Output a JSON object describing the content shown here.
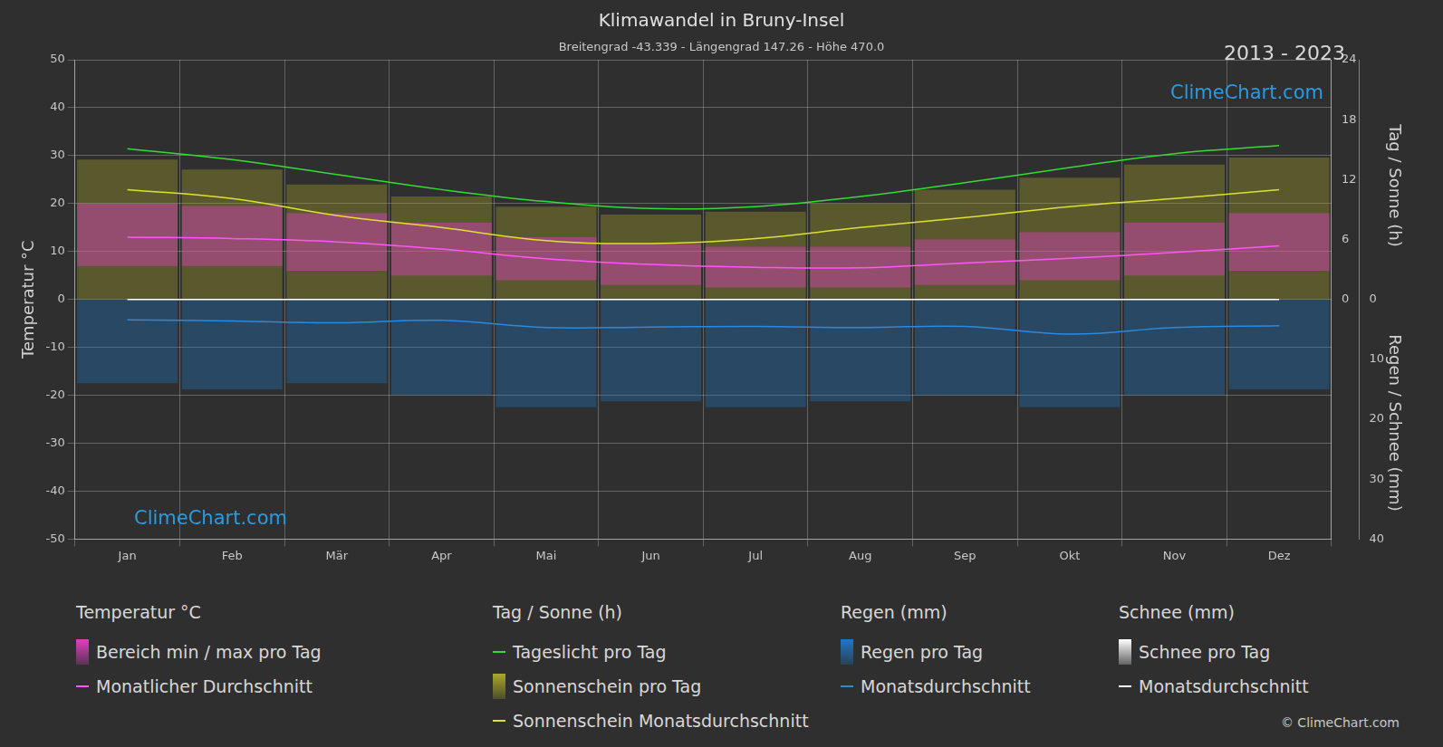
{
  "chart_data": {
    "type": "line",
    "title": "Klimawandel in Bruny-Insel",
    "subtitle": "Breitengrad -43.339 - Längengrad 147.26 - Höhe 470.0",
    "period": "2013 - 2023",
    "watermark": "ClimeChart.com",
    "copyright": "© ClimeChart.com",
    "y_label": "Temperatur °C",
    "y2_label": "Tag / Sonne (h)",
    "y3_label": "Regen / Schnee (mm)",
    "categories": [
      "Jan",
      "Feb",
      "Mär",
      "Apr",
      "Mai",
      "Jun",
      "Jul",
      "Aug",
      "Sep",
      "Okt",
      "Nov",
      "Dez"
    ],
    "ylim": [
      -50,
      50
    ],
    "yticks": [
      -50,
      -40,
      -30,
      -20,
      -10,
      0,
      10,
      20,
      30,
      40,
      50
    ],
    "y2lim": [
      -24,
      24
    ],
    "y2ticks": [
      0,
      6,
      12,
      18,
      24
    ],
    "y3lim": [
      40,
      -40
    ],
    "y3ticks": [
      0,
      10,
      20,
      30,
      40
    ],
    "grid": true,
    "series": [
      {
        "name": "Bereich min / max pro Tag",
        "group": "Temperatur °C",
        "type": "range",
        "color": "#e040c0",
        "values": [
          [
            7,
            20
          ],
          [
            7,
            19.5
          ],
          [
            6,
            18
          ],
          [
            5,
            16
          ],
          [
            4,
            13
          ],
          [
            3,
            11.5
          ],
          [
            2.5,
            11
          ],
          [
            2.5,
            11
          ],
          [
            3,
            12.5
          ],
          [
            4,
            14
          ],
          [
            5,
            16
          ],
          [
            6,
            18
          ]
        ]
      },
      {
        "name": "Monatlicher Durchschnitt",
        "group": "Temperatur °C",
        "type": "line",
        "color": "#ff55ff",
        "values": [
          13,
          12.7,
          12,
          10.5,
          8.5,
          7.3,
          6.7,
          6.6,
          7.6,
          8.6,
          9.8,
          11.2
        ]
      },
      {
        "name": "Tageslicht pro Tag",
        "group": "Tag / Sonne (h)",
        "type": "line",
        "color": "#33dd33",
        "axis": "y2",
        "values": [
          15.1,
          14.0,
          12.5,
          11.0,
          9.8,
          9.1,
          9.3,
          10.3,
          11.7,
          13.2,
          14.6,
          15.4
        ]
      },
      {
        "name": "Sonnenschein pro Tag",
        "group": "Tag / Sonne (h)",
        "type": "bar",
        "color": "#a8a82a",
        "axis": "y2",
        "values": [
          14,
          13,
          11.5,
          10.3,
          9.3,
          8.5,
          8.8,
          9.6,
          11,
          12.2,
          13.5,
          14.2
        ]
      },
      {
        "name": "Sonnenschein Monatsdurchschnitt",
        "group": "Tag / Sonne (h)",
        "type": "line",
        "color": "#e0e030",
        "axis": "y2",
        "values": [
          11.0,
          10.1,
          8.4,
          7.2,
          5.9,
          5.6,
          6.1,
          7.2,
          8.2,
          9.3,
          10.1,
          11.0
        ]
      },
      {
        "name": "Regen pro Tag",
        "group": "Regen (mm)",
        "type": "bar",
        "color": "#1e78c8",
        "axis": "y3",
        "values": [
          14,
          15,
          14,
          16,
          18,
          17,
          18,
          17,
          16,
          18,
          16,
          15
        ]
      },
      {
        "name": "Monatsdurchschnitt",
        "group": "Regen (mm)",
        "type": "line",
        "color": "#2a8ae0",
        "axis": "y3",
        "values": [
          3.4,
          3.6,
          3.9,
          3.5,
          4.7,
          4.6,
          4.5,
          4.7,
          4.5,
          5.8,
          4.7,
          4.4
        ]
      },
      {
        "name": "Schnee pro Tag",
        "group": "Schnee (mm)",
        "type": "bar",
        "color": "#ffffff",
        "axis": "y3",
        "values": [
          0,
          0,
          0,
          0,
          0,
          0,
          0,
          0,
          0,
          0,
          0,
          0
        ]
      },
      {
        "name": "Monatsdurchschnitt",
        "group": "Schnee (mm)",
        "type": "line",
        "color": "#ffffff",
        "axis": "y3",
        "values": [
          0,
          0,
          0,
          0,
          0,
          0,
          0,
          0,
          0,
          0,
          0,
          0
        ]
      }
    ]
  }
}
